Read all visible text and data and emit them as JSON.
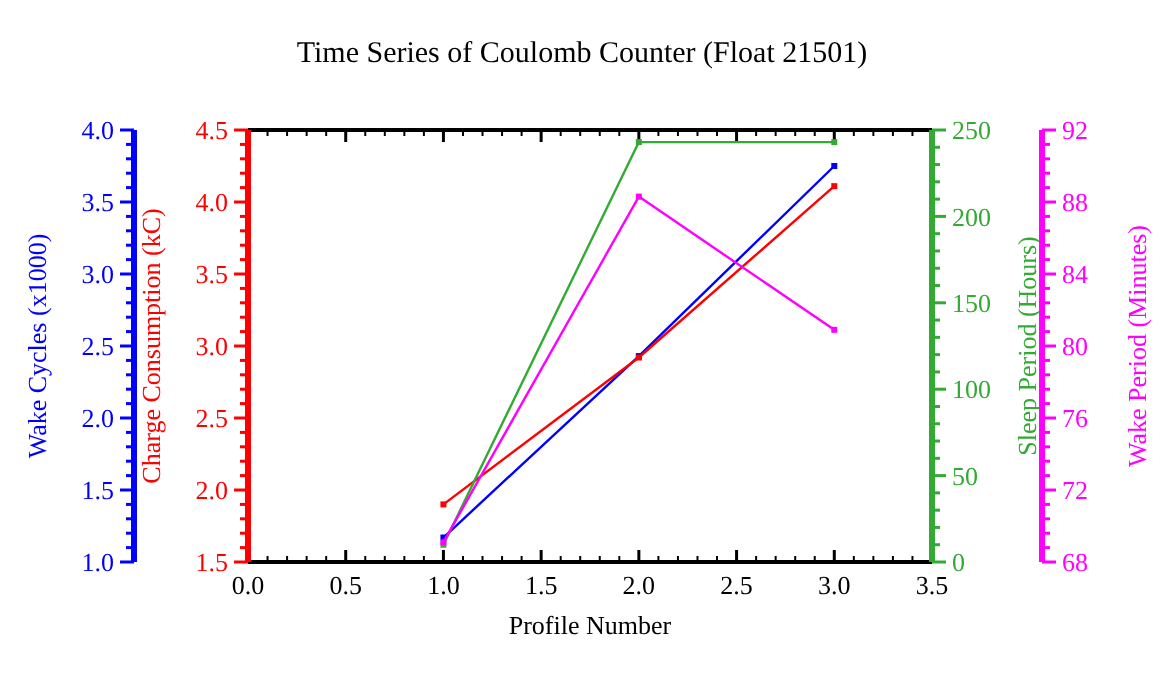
{
  "chart_data": [
    {
      "type": "line",
      "title": "Time Series of Coulomb Counter (Float 21501)",
      "xlabel": "Profile Number",
      "ylabel": "Charge Consumption (kC)",
      "y2label": "Sleep Period (Hours)",
      "y3label": "Wake Cycles (x1000)",
      "x": [
        1,
        2,
        3
      ],
      "xlim": [
        0,
        3.5
      ],
      "xticks": [
        {
          "value": 0,
          "label": "0.0"
        },
        0.5,
        {
          "value": 1,
          "label": "1.0"
        },
        1.5,
        {
          "value": 2,
          "label": "2.0"
        },
        2.5,
        {
          "value": 3,
          "label": "3.0"
        },
        3.5
      ],
      "ylim": [
        1.5,
        4.5
      ],
      "yticks": [
        1.5,
        {
          "value": 2,
          "label": "2.0"
        },
        2.5,
        {
          "value": 3,
          "label": "3.0"
        },
        3.5,
        {
          "value": 4,
          "label": "4.0"
        },
        4.5
      ],
      "y2lim": [
        0,
        250
      ],
      "y2ticks": [
        0,
        50,
        100,
        150,
        200,
        250
      ],
      "y3lim": [
        1,
        4
      ],
      "y3ticks": [
        {
          "value": 1,
          "label": "1.0"
        },
        1.5,
        {
          "value": 2,
          "label": "2.0"
        },
        2.5,
        {
          "value": 3,
          "label": "3.0"
        },
        3.5,
        {
          "value": 4,
          "label": "4.0"
        }
      ],
      "marker": "square",
      "line_style": "solid",
      "series": [
        {
          "color": "#0000ff",
          "axis": "y3",
          "values": [
            1.17,
            2.43,
            3.75
          ]
        },
        {
          "color": "#ff0000",
          "values": [
            1.9,
            2.92,
            4.11
          ]
        },
        {
          "color": "#33aa33",
          "axis": "y2",
          "values": [
            10,
            243,
            243
          ]
        }
      ]
    },
    {
      "type": "line",
      "ylabel": "Wake Period (Minutes)",
      "x": [
        1,
        2,
        3
      ],
      "xlim": [
        0,
        3.5
      ],
      "ylim": [
        68,
        92
      ],
      "yticks": [
        68,
        72,
        76,
        80,
        84,
        88,
        92
      ],
      "tick_labels": "y",
      "marker": "square",
      "line_style": "solid",
      "series": [
        {
          "color": "#ff00ff",
          "values": [
            69.1,
            88.3,
            80.9
          ]
        }
      ]
    }
  ]
}
